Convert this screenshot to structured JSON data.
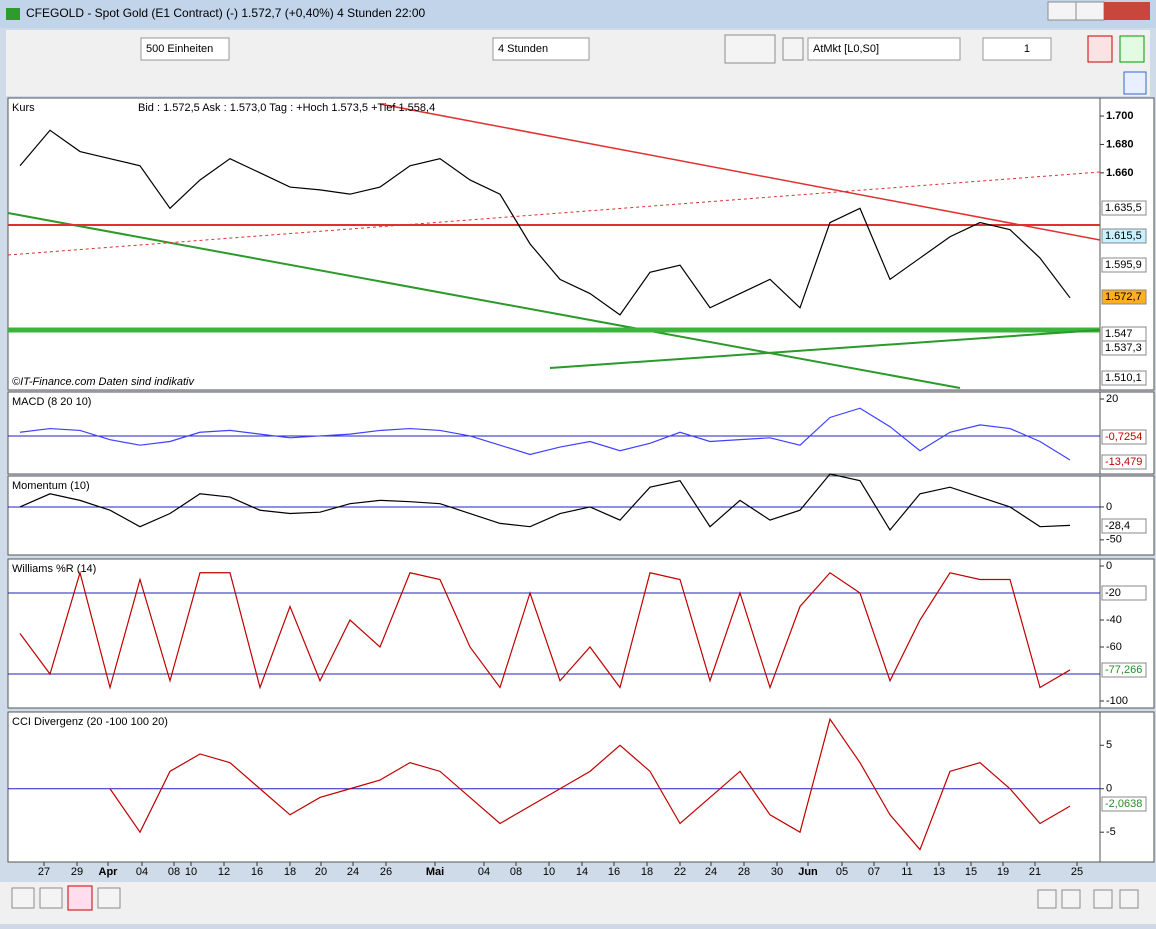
{
  "window": {
    "title": "CFEGOLD - Spot Gold (E1 Contract) (-)    1.572,7 (+0,40%)     4 Stunden  22:00"
  },
  "toolbar": {
    "units": "500 Einheiten",
    "interval": "4 Stunden",
    "order": "AtMkt [L0,S0]",
    "quantity": "1"
  },
  "panels": [
    {
      "name": "Kurs",
      "info": "Bid : 1.572,5  Ask : 1.573,0   Tag : +Hoch 1.573,5  +Tief 1.558,4",
      "footer": "©IT-Finance.com   Daten sind indikativ",
      "ylim": [
        1.5085,
        1.7113
      ],
      "yticks": [
        {
          "value": 1.7,
          "label": "1.700"
        },
        {
          "value": 1.68,
          "label": "1.680"
        },
        {
          "value": 1.66,
          "label": "1.660"
        }
      ],
      "reference_lines": [],
      "series": [
        {
          "color": "#000000",
          "values": [
            1.665,
            1.69,
            1.675,
            1.67,
            1.665,
            1.635,
            1.655,
            1.67,
            1.66,
            1.65,
            1.648,
            1.645,
            1.65,
            1.665,
            1.67,
            1.655,
            1.645,
            1.61,
            1.585,
            1.575,
            1.56,
            1.59,
            1.595,
            1.565,
            1.575,
            1.585,
            1.565,
            1.625,
            1.635,
            1.585,
            1.6,
            1.615,
            1.625,
            1.62,
            1.6,
            1.572
          ]
        }
      ],
      "value_boxes": [
        {
          "label": "1.635,5",
          "color": "#000000",
          "bg": "#ffffff"
        },
        {
          "label": "1.615,5",
          "color": "#000000",
          "bg": "#c8f0ff"
        },
        {
          "label": "1.595,9",
          "color": "#000000",
          "bg": "#ffffff"
        },
        {
          "label": "1.572,7",
          "color": "#000000",
          "bg": "#ffb020"
        },
        {
          "label": "1.547",
          "color": "#000000",
          "bg": "#ffffff"
        },
        {
          "label": "1.537,3",
          "color": "#000000",
          "bg": "#ffffff"
        },
        {
          "label": "1.510,1",
          "color": "#000000",
          "bg": "#ffffff"
        }
      ]
    },
    {
      "name": "MACD (8 20 10)",
      "ylim": [
        -19.5,
        22.7
      ],
      "yticks": [
        20
      ],
      "reference_lines": [
        0
      ],
      "series": [
        {
          "color": "#4040ff",
          "values": [
            2,
            4,
            3,
            -2,
            -5,
            -3,
            2,
            3,
            1,
            -1,
            0,
            1,
            3,
            4,
            3,
            0,
            -5,
            -10,
            -6,
            -3,
            -8,
            -4,
            2,
            -3,
            -2,
            -1,
            -5,
            10,
            15,
            5,
            -8,
            2,
            6,
            4,
            -3,
            -13
          ]
        }
      ],
      "value_boxes": [
        {
          "label": "-0,7254",
          "color": "#c00000",
          "bg": "#ffffff"
        },
        {
          "label": "-13,479",
          "color": "#c00000",
          "bg": "#ffffff"
        }
      ]
    },
    {
      "name": "Momentum (10)",
      "ylim": [
        -70,
        44
      ],
      "yticks": [
        0,
        -50
      ],
      "reference_lines": [
        0
      ],
      "series": [
        {
          "color": "#000000",
          "values": [
            0,
            20,
            10,
            -5,
            -30,
            -10,
            20,
            15,
            -5,
            -10,
            -8,
            5,
            10,
            8,
            5,
            -10,
            -25,
            -30,
            -10,
            0,
            -20,
            30,
            40,
            -30,
            10,
            -20,
            -5,
            50,
            40,
            -35,
            20,
            30,
            15,
            0,
            -30,
            -28
          ]
        }
      ],
      "value_boxes": [
        {
          "label": "-28,4",
          "color": "#000000",
          "bg": "#ffffff"
        }
      ]
    },
    {
      "name": "Williams %R (14)",
      "ylim": [
        -103.7,
        3.7
      ],
      "yticks": [
        0,
        -40,
        -60,
        -100
      ],
      "reference_lines": [
        -20,
        -80
      ],
      "series": [
        {
          "color": "#c00000",
          "values": [
            -50,
            -80,
            -5,
            -90,
            -10,
            -85,
            -5,
            -5,
            -90,
            -30,
            -85,
            -40,
            -60,
            -5,
            -10,
            -60,
            -90,
            -20,
            -85,
            -60,
            -90,
            -5,
            -10,
            -85,
            -20,
            -90,
            -30,
            -5,
            -20,
            -85,
            -40,
            -5,
            -10,
            -10,
            -90,
            -77
          ]
        }
      ],
      "value_boxes": [
        {
          "label": "-20",
          "color": "#000000",
          "bg": "#ffffff"
        },
        {
          "label": "-77,266",
          "color": "#2a8a2a",
          "bg": "#ffffff"
        }
      ]
    },
    {
      "name": "CCI Divergenz (20 -100 100 20)",
      "ylim": [
        -8.2,
        8.6
      ],
      "yticks": [
        5,
        0,
        -5
      ],
      "reference_lines": [
        0
      ],
      "series": [
        {
          "color": "#c00000",
          "values": [
            null,
            null,
            null,
            0,
            -5,
            2,
            4,
            3,
            0,
            -3,
            -1,
            0,
            1,
            3,
            2,
            -1,
            -4,
            -2,
            0,
            2,
            5,
            2,
            -4,
            -1,
            2,
            -3,
            -5,
            8,
            3,
            -3,
            -7,
            2,
            3,
            0,
            -4,
            -2
          ]
        }
      ],
      "value_boxes": [
        {
          "label": "-2,0638",
          "color": "#2a8a2a",
          "bg": "#ffffff"
        }
      ]
    }
  ],
  "x_axis": {
    "labels": [
      "27",
      "29",
      "Apr",
      "04",
      "08",
      "10",
      "12",
      "16",
      "18",
      "20",
      "24",
      "26",
      "Mai",
      "04",
      "08",
      "10",
      "14",
      "16",
      "18",
      "22",
      "24",
      "28",
      "30",
      "Jun",
      "05",
      "07",
      "11",
      "13",
      "15",
      "19",
      "21",
      "25"
    ]
  }
}
